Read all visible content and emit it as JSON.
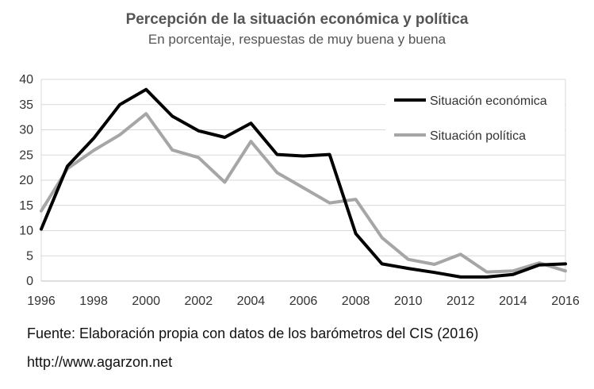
{
  "chart_data": {
    "type": "line",
    "title": "Percepción de la situación económica y política",
    "subtitle": "En porcentaje, respuestas de muy buena y buena",
    "xlabel": "",
    "ylabel": "",
    "x": [
      1996,
      1997,
      1998,
      1999,
      2000,
      2001,
      2002,
      2003,
      2004,
      2005,
      2006,
      2007,
      2008,
      2009,
      2010,
      2011,
      2012,
      2013,
      2014,
      2015,
      2016
    ],
    "xticks": [
      "1996",
      "1998",
      "2000",
      "2002",
      "2004",
      "2006",
      "2008",
      "2010",
      "2012",
      "2014",
      "2016"
    ],
    "yticks": [
      "0",
      "5",
      "10",
      "15",
      "20",
      "25",
      "30",
      "35",
      "40"
    ],
    "ylim": [
      0,
      40
    ],
    "xlim": [
      1996,
      2016
    ],
    "grid": true,
    "legend_position": "top-right",
    "series": [
      {
        "name": "Situación económica",
        "color": "#000000",
        "values": [
          10.3,
          22.8,
          28.3,
          35.0,
          38.0,
          32.7,
          29.8,
          28.5,
          31.3,
          25.1,
          24.8,
          25.1,
          9.4,
          3.4,
          2.5,
          1.7,
          0.8,
          0.8,
          1.3,
          3.2,
          3.4
        ]
      },
      {
        "name": "Situación política",
        "color": "#a6a6a6",
        "values": [
          13.9,
          22.3,
          25.9,
          29.0,
          33.2,
          26.0,
          24.5,
          19.6,
          27.7,
          21.5,
          18.5,
          15.5,
          16.2,
          8.6,
          4.3,
          3.3,
          5.3,
          1.8,
          2.0,
          3.6,
          2.0
        ]
      }
    ]
  },
  "footer": {
    "source": "Fuente: Elaboración propia con datos de los barómetros del CIS (2016)",
    "url": "http://www.agarzon.net"
  }
}
